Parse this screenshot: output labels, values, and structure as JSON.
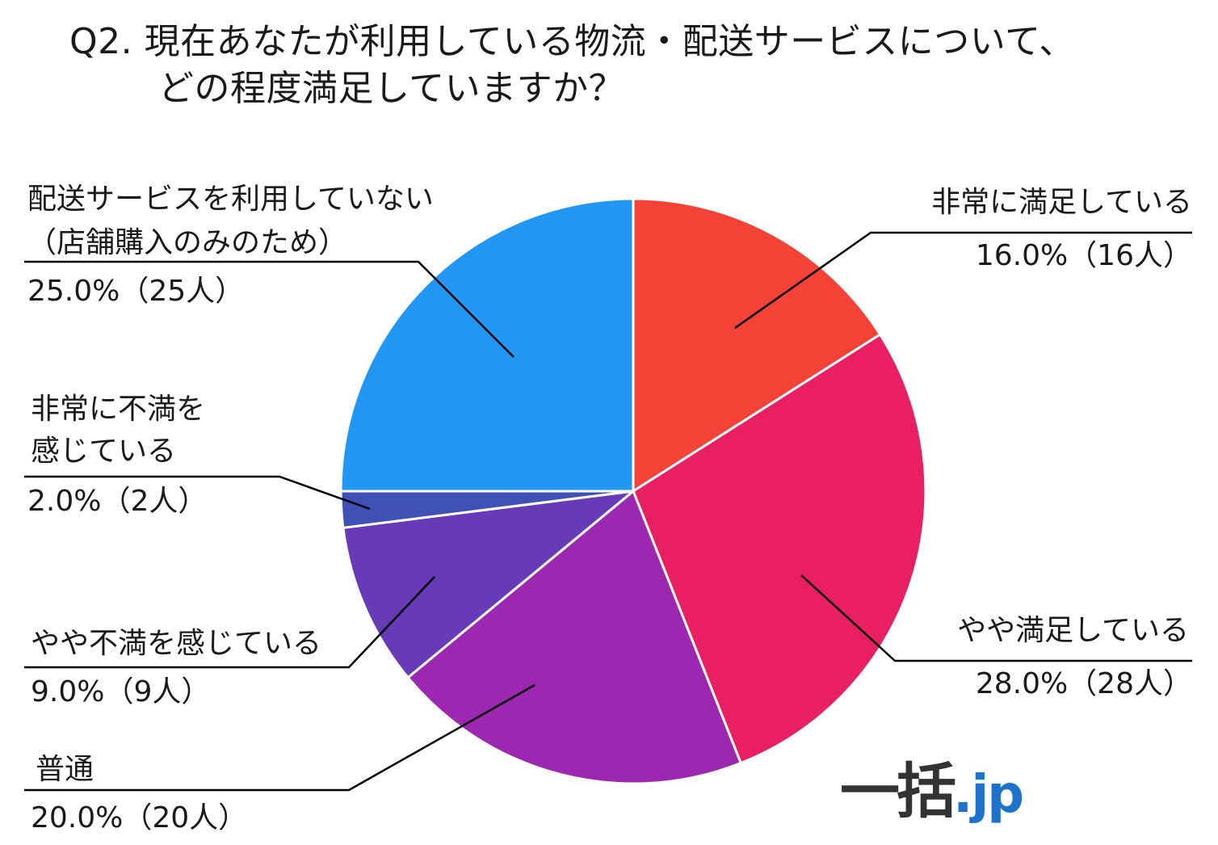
{
  "title": {
    "line1": "Q2. 現在あなたが利用している物流・配送サービスについて、",
    "line2": "どの程度満足していますか？"
  },
  "logo": {
    "main": "一括",
    "suffix": ".jp"
  },
  "chart_data": {
    "type": "pie",
    "start_angle_deg": 0,
    "direction": "clockwise",
    "slices": [
      {
        "id": "very-satisfied",
        "label": [
          "非常に満足している"
        ],
        "value": 16.0,
        "pct_label": "16.0%（16人）",
        "color": "#f44336"
      },
      {
        "id": "somewhat-satisfied",
        "label": [
          "やや満足している"
        ],
        "value": 28.0,
        "pct_label": "28.0%（28人）",
        "color": "#e91e63"
      },
      {
        "id": "neutral",
        "label": [
          "普通"
        ],
        "value": 20.0,
        "pct_label": "20.0%（20人）",
        "color": "#9c27b0"
      },
      {
        "id": "somewhat-dissatisfied",
        "label": [
          "やや不満を感じている"
        ],
        "value": 9.0,
        "pct_label": "9.0%（9人）",
        "color": "#673ab7"
      },
      {
        "id": "very-dissatisfied",
        "label": [
          "非常に不満を",
          "感じている"
        ],
        "value": 2.0,
        "pct_label": "2.0%（2人）",
        "color": "#3f51b5"
      },
      {
        "id": "not-using",
        "label": [
          "配送サービスを利用していない",
          "（店舗購入のみのため）"
        ],
        "value": 25.0,
        "pct_label": "25.0%（25人）",
        "color": "#2196f3"
      }
    ]
  }
}
